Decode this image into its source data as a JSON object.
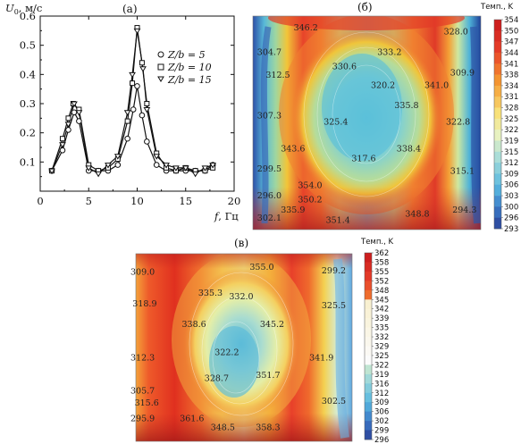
{
  "panel_a": {
    "label": "(а)",
    "ylabel_var": "U",
    "ylabel_sub": "0",
    "ylabel_unit": ", м/с",
    "xlabel_var": "f",
    "xlabel_unit": ",  Гц",
    "legend": [
      "Z/b = 5",
      "Z/b = 10",
      "Z/b = 15"
    ]
  },
  "chart_data": {
    "type": "line",
    "xlim": [
      0,
      20
    ],
    "ylim": [
      0,
      0.6
    ],
    "x_ticks": [
      "0",
      "5",
      "10",
      "15",
      "20"
    ],
    "y_ticks": [
      "0.1",
      "0.2",
      "0.3",
      "0.4",
      "0.5",
      "0.6"
    ],
    "series": [
      {
        "name": "Z/b = 5",
        "marker": "circle",
        "x": [
          1.2,
          2.3,
          2.9,
          3.5,
          4.0,
          5.0,
          6.0,
          7.0,
          8.0,
          9.0,
          9.6,
          10.0,
          10.5,
          11.0,
          12.0,
          13.0,
          14.0,
          15.0,
          16.0,
          17.0,
          17.8
        ],
        "y": [
          0.07,
          0.14,
          0.21,
          0.27,
          0.24,
          0.07,
          0.07,
          0.07,
          0.09,
          0.18,
          0.28,
          0.36,
          0.26,
          0.17,
          0.09,
          0.07,
          0.07,
          0.07,
          0.07,
          0.07,
          0.09
        ]
      },
      {
        "name": "Z/b = 10",
        "marker": "square",
        "x": [
          1.2,
          2.3,
          2.9,
          3.4,
          4.0,
          5.0,
          6.0,
          7.0,
          8.0,
          9.0,
          9.5,
          10.0,
          10.5,
          11.0,
          12.0,
          13.0,
          14.0,
          15.0,
          16.0,
          17.0,
          17.8
        ],
        "y": [
          0.07,
          0.18,
          0.25,
          0.3,
          0.28,
          0.09,
          0.07,
          0.08,
          0.11,
          0.24,
          0.37,
          0.56,
          0.44,
          0.3,
          0.13,
          0.08,
          0.07,
          0.08,
          0.07,
          0.07,
          0.08
        ]
      },
      {
        "name": "Z/b = 15",
        "marker": "triangle",
        "x": [
          1.2,
          2.3,
          2.9,
          3.5,
          4.0,
          5.0,
          6.0,
          7.0,
          8.0,
          9.0,
          9.5,
          10.0,
          10.6,
          11.0,
          12.0,
          13.0,
          14.0,
          15.0,
          16.0,
          17.0,
          17.8
        ],
        "y": [
          0.07,
          0.16,
          0.23,
          0.3,
          0.27,
          0.08,
          0.06,
          0.09,
          0.12,
          0.27,
          0.4,
          0.55,
          0.42,
          0.28,
          0.12,
          0.09,
          0.08,
          0.08,
          0.06,
          0.08,
          0.09
        ]
      }
    ]
  },
  "panel_b": {
    "label": "(б)",
    "colorbar_title": "Темп., K",
    "colorbar_ticks": [
      "354",
      "350",
      "347",
      "344",
      "341",
      "338",
      "334",
      "331",
      "328",
      "325",
      "322",
      "319",
      "315",
      "312",
      "309",
      "306",
      "303",
      "300",
      "296",
      "293"
    ],
    "values": [
      {
        "t": "346.2",
        "x": 0.19,
        "y": 0.04
      },
      {
        "t": "328.0",
        "x": 0.89,
        "y": 0.06
      },
      {
        "t": "333.2",
        "x": 0.58,
        "y": 0.16
      },
      {
        "t": "304.7",
        "x": 0.02,
        "y": 0.16
      },
      {
        "t": "330.6",
        "x": 0.37,
        "y": 0.23
      },
      {
        "t": "309.9",
        "x": 0.92,
        "y": 0.26
      },
      {
        "t": "312.5",
        "x": 0.06,
        "y": 0.27
      },
      {
        "t": "320.2",
        "x": 0.55,
        "y": 0.32
      },
      {
        "t": "341.0",
        "x": 0.8,
        "y": 0.32
      },
      {
        "t": "335.8",
        "x": 0.66,
        "y": 0.42
      },
      {
        "t": "307.3",
        "x": 0.02,
        "y": 0.47
      },
      {
        "t": "325.4",
        "x": 0.33,
        "y": 0.5
      },
      {
        "t": "322.8",
        "x": 0.9,
        "y": 0.5
      },
      {
        "t": "343.6",
        "x": 0.13,
        "y": 0.63
      },
      {
        "t": "338.4",
        "x": 0.67,
        "y": 0.63
      },
      {
        "t": "317.6",
        "x": 0.46,
        "y": 0.68
      },
      {
        "t": "299.5",
        "x": 0.02,
        "y": 0.73
      },
      {
        "t": "315.1",
        "x": 0.92,
        "y": 0.74
      },
      {
        "t": "354.0",
        "x": 0.21,
        "y": 0.81
      },
      {
        "t": "296.0",
        "x": 0.02,
        "y": 0.86
      },
      {
        "t": "350.2",
        "x": 0.21,
        "y": 0.88
      },
      {
        "t": "335.9",
        "x": 0.13,
        "y": 0.93
      },
      {
        "t": "294.3",
        "x": 0.93,
        "y": 0.93
      },
      {
        "t": "348.8",
        "x": 0.71,
        "y": 0.95
      },
      {
        "t": "302.1",
        "x": 0.02,
        "y": 0.97
      },
      {
        "t": "351.4",
        "x": 0.34,
        "y": 0.98
      }
    ]
  },
  "panel_c": {
    "label": "(в)",
    "colorbar_title": "Темп., K",
    "colorbar_ticks": [
      "362",
      "358",
      "355",
      "352",
      "348",
      "345",
      "342",
      "339",
      "335",
      "332",
      "329",
      "325",
      "322",
      "319",
      "316",
      "312",
      "309",
      "306",
      "302",
      "299",
      "296"
    ],
    "values": [
      {
        "t": "355.0",
        "x": 0.58,
        "y": 0.03
      },
      {
        "t": "309.0",
        "x": 0.0,
        "y": 0.06
      },
      {
        "t": "299.2",
        "x": 0.93,
        "y": 0.05
      },
      {
        "t": "335.3",
        "x": 0.33,
        "y": 0.18
      },
      {
        "t": "332.0",
        "x": 0.48,
        "y": 0.2
      },
      {
        "t": "318.9",
        "x": 0.01,
        "y": 0.24
      },
      {
        "t": "325.5",
        "x": 0.93,
        "y": 0.25
      },
      {
        "t": "338.6",
        "x": 0.25,
        "y": 0.36
      },
      {
        "t": "345.2",
        "x": 0.63,
        "y": 0.36
      },
      {
        "t": "322.2",
        "x": 0.41,
        "y": 0.52
      },
      {
        "t": "312.3",
        "x": 0.0,
        "y": 0.55
      },
      {
        "t": "341.9",
        "x": 0.87,
        "y": 0.55
      },
      {
        "t": "328.7",
        "x": 0.36,
        "y": 0.67
      },
      {
        "t": "351.7",
        "x": 0.61,
        "y": 0.65
      },
      {
        "t": "305.7",
        "x": 0.0,
        "y": 0.74
      },
      {
        "t": "302.5",
        "x": 0.93,
        "y": 0.8
      },
      {
        "t": "315.6",
        "x": 0.02,
        "y": 0.81
      },
      {
        "t": "295.9",
        "x": 0.0,
        "y": 0.9
      },
      {
        "t": "361.6",
        "x": 0.24,
        "y": 0.9
      },
      {
        "t": "348.5",
        "x": 0.39,
        "y": 0.95
      },
      {
        "t": "358.3",
        "x": 0.61,
        "y": 0.95
      }
    ]
  }
}
